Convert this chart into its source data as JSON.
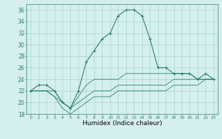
{
  "xlabel": "Humidex (Indice chaleur)",
  "x": [
    0,
    1,
    2,
    3,
    4,
    5,
    6,
    7,
    8,
    9,
    10,
    11,
    12,
    13,
    14,
    15,
    16,
    17,
    18,
    19,
    20,
    21,
    22,
    23
  ],
  "y_main": [
    22,
    23,
    23,
    22,
    20,
    19,
    22,
    27,
    29,
    31,
    32,
    35,
    36,
    36,
    35,
    31,
    26,
    26,
    25,
    25,
    25,
    24,
    25,
    24
  ],
  "y_min": [
    22,
    22,
    22,
    21,
    19,
    18,
    19,
    20,
    21,
    21,
    21,
    22,
    22,
    22,
    22,
    22,
    22,
    22,
    23,
    23,
    23,
    23,
    24,
    24
  ],
  "y_max": [
    22,
    22,
    22,
    22,
    20,
    19,
    21,
    23,
    24,
    24,
    24,
    24,
    25,
    25,
    25,
    25,
    25,
    25,
    25,
    25,
    25,
    24,
    24,
    24
  ],
  "y_avg": [
    22,
    22,
    22,
    21,
    20,
    19,
    20,
    21,
    22,
    22,
    22,
    23,
    23,
    23,
    23,
    23,
    23,
    23,
    24,
    24,
    24,
    24,
    24,
    24
  ],
  "ylim": [
    18,
    37
  ],
  "yticks": [
    18,
    20,
    22,
    24,
    26,
    28,
    30,
    32,
    34,
    36
  ],
  "xlim": [
    -0.5,
    23.5
  ],
  "line_color": "#2e7d6e",
  "bg_color": "#d4efed",
  "grid_color": "#a8d5d0",
  "xtick_labels": [
    "0",
    "1",
    "2",
    "3",
    "4",
    "5",
    "6",
    "7",
    "8",
    "9",
    "10",
    "11",
    "12",
    "13",
    "14",
    "15",
    "16",
    "17",
    "18",
    "19",
    "20",
    "21",
    "22",
    "23"
  ]
}
